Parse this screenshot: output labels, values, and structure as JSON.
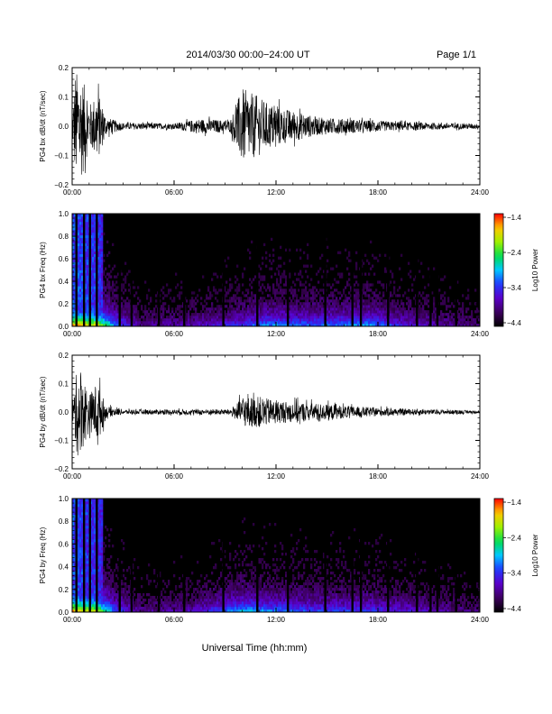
{
  "header": {
    "date_range": "2014/03/30  00:00−24:00 UT",
    "page": "Page 1/1"
  },
  "chart_data": [
    {
      "type": "line",
      "ylabel": "PG4 bx dB/dt (nT/sec)",
      "ylim": [
        -0.2,
        0.2
      ],
      "yticks": [
        "0.2",
        "0.1",
        "0.0",
        "−0.1",
        "−0.2"
      ],
      "xticks": [
        "00:00",
        "06:00",
        "12:00",
        "18:00",
        "24:00"
      ],
      "xlim_hours": [
        0,
        24
      ],
      "envelope": [
        {
          "hour": 0.0,
          "amp": 0.03
        },
        {
          "hour": 0.2,
          "amp": 0.19
        },
        {
          "hour": 0.6,
          "amp": 0.17
        },
        {
          "hour": 1.0,
          "amp": 0.07
        },
        {
          "hour": 1.5,
          "amp": 0.12
        },
        {
          "hour": 2.0,
          "amp": 0.03
        },
        {
          "hour": 3.0,
          "amp": 0.012
        },
        {
          "hour": 6.0,
          "amp": 0.01
        },
        {
          "hour": 7.5,
          "amp": 0.025
        },
        {
          "hour": 9.3,
          "amp": 0.02
        },
        {
          "hour": 10.0,
          "amp": 0.13
        },
        {
          "hour": 11.0,
          "amp": 0.1
        },
        {
          "hour": 11.5,
          "amp": 0.08
        },
        {
          "hour": 12.5,
          "amp": 0.06
        },
        {
          "hour": 14.5,
          "amp": 0.03
        },
        {
          "hour": 16.0,
          "amp": 0.025
        },
        {
          "hour": 19.0,
          "amp": 0.015
        },
        {
          "hour": 24.0,
          "amp": 0.008
        }
      ]
    },
    {
      "type": "heatmap",
      "ylabel": "PG4 bx Freq (Hz)",
      "ylim": [
        0,
        1.0
      ],
      "yticks": [
        "1.0",
        "0.8",
        "0.6",
        "0.4",
        "0.2",
        "0.0"
      ],
      "xticks": [
        "00:00",
        "06:00",
        "12:00",
        "18:00",
        "24:00"
      ],
      "xlim_hours": [
        0,
        24
      ],
      "colorbar": {
        "label": "Log10 Power",
        "ticks": [
          "−1.4",
          "−2.4",
          "−3.4",
          "−4.4"
        ],
        "range": [
          -4.4,
          -1.4
        ]
      },
      "gap_hours": [
        0.25,
        0.7,
        1.05,
        1.45,
        2.8,
        3.5,
        5.1,
        6.6,
        8.9,
        10.9,
        12.7,
        14.9,
        16.5,
        17.0,
        18.6,
        20.3,
        21.1,
        21.5,
        22.6
      ],
      "activity": [
        {
          "hour": 0.0,
          "level": 1.0
        },
        {
          "hour": 1.5,
          "level": 0.9
        },
        {
          "hour": 2.5,
          "level": 0.5
        },
        {
          "hour": 4.0,
          "level": 0.2
        },
        {
          "hour": 7.0,
          "level": 0.25
        },
        {
          "hour": 9.5,
          "level": 0.35
        },
        {
          "hour": 11.5,
          "level": 0.5
        },
        {
          "hour": 14.0,
          "level": 0.45
        },
        {
          "hour": 17.5,
          "level": 0.5
        },
        {
          "hour": 20.0,
          "level": 0.3
        },
        {
          "hour": 24.0,
          "level": 0.15
        }
      ]
    },
    {
      "type": "line",
      "ylabel": "PG4 by dB/dt (nT/sec)",
      "ylim": [
        -0.2,
        0.2
      ],
      "yticks": [
        "0.2",
        "0.1",
        "0.0",
        "−0.1",
        "−0.2"
      ],
      "xticks": [
        "00:00",
        "06:00",
        "12:00",
        "18:00",
        "24:00"
      ],
      "xlim_hours": [
        0,
        24
      ],
      "envelope": [
        {
          "hour": 0.0,
          "amp": 0.02
        },
        {
          "hour": 0.3,
          "amp": 0.16
        },
        {
          "hour": 0.7,
          "amp": 0.12
        },
        {
          "hour": 1.0,
          "amp": 0.06
        },
        {
          "hour": 1.5,
          "amp": 0.11
        },
        {
          "hour": 2.0,
          "amp": 0.02
        },
        {
          "hour": 3.0,
          "amp": 0.008
        },
        {
          "hour": 9.3,
          "amp": 0.01
        },
        {
          "hour": 10.0,
          "amp": 0.05
        },
        {
          "hour": 11.0,
          "amp": 0.055
        },
        {
          "hour": 12.0,
          "amp": 0.04
        },
        {
          "hour": 14.5,
          "amp": 0.03
        },
        {
          "hour": 16.5,
          "amp": 0.02
        },
        {
          "hour": 19.0,
          "amp": 0.012
        },
        {
          "hour": 24.0,
          "amp": 0.005
        }
      ]
    },
    {
      "type": "heatmap",
      "ylabel": "PG4 by Freq (Hz)",
      "ylim": [
        0,
        1.0
      ],
      "yticks": [
        "1.0",
        "0.8",
        "0.6",
        "0.4",
        "0.2",
        "0.0"
      ],
      "xticks": [
        "00:00",
        "06:00",
        "12:00",
        "18:00",
        "24:00"
      ],
      "xlim_hours": [
        0,
        24
      ],
      "colorbar": {
        "label": "Log10 Power",
        "ticks": [
          "−1.4",
          "−2.4",
          "−3.4",
          "−4.4"
        ],
        "range": [
          -4.4,
          -1.4
        ]
      },
      "gap_hours": [
        0.25,
        0.7,
        1.05,
        1.45,
        2.8,
        3.5,
        5.1,
        6.6,
        8.9,
        10.9,
        12.7,
        14.9,
        16.5,
        17.0,
        18.6,
        20.3,
        21.1,
        21.5,
        22.6
      ],
      "activity": [
        {
          "hour": 0.0,
          "level": 1.0
        },
        {
          "hour": 1.5,
          "level": 0.85
        },
        {
          "hour": 2.5,
          "level": 0.45
        },
        {
          "hour": 4.0,
          "level": 0.2
        },
        {
          "hour": 7.0,
          "level": 0.25
        },
        {
          "hour": 10.0,
          "level": 0.55
        },
        {
          "hour": 11.5,
          "level": 0.5
        },
        {
          "hour": 14.0,
          "level": 0.4
        },
        {
          "hour": 17.5,
          "level": 0.4
        },
        {
          "hour": 20.0,
          "level": 0.3
        },
        {
          "hour": 24.0,
          "level": 0.15
        }
      ]
    }
  ],
  "xaxis_label": "Universal Time (hh:mm)"
}
